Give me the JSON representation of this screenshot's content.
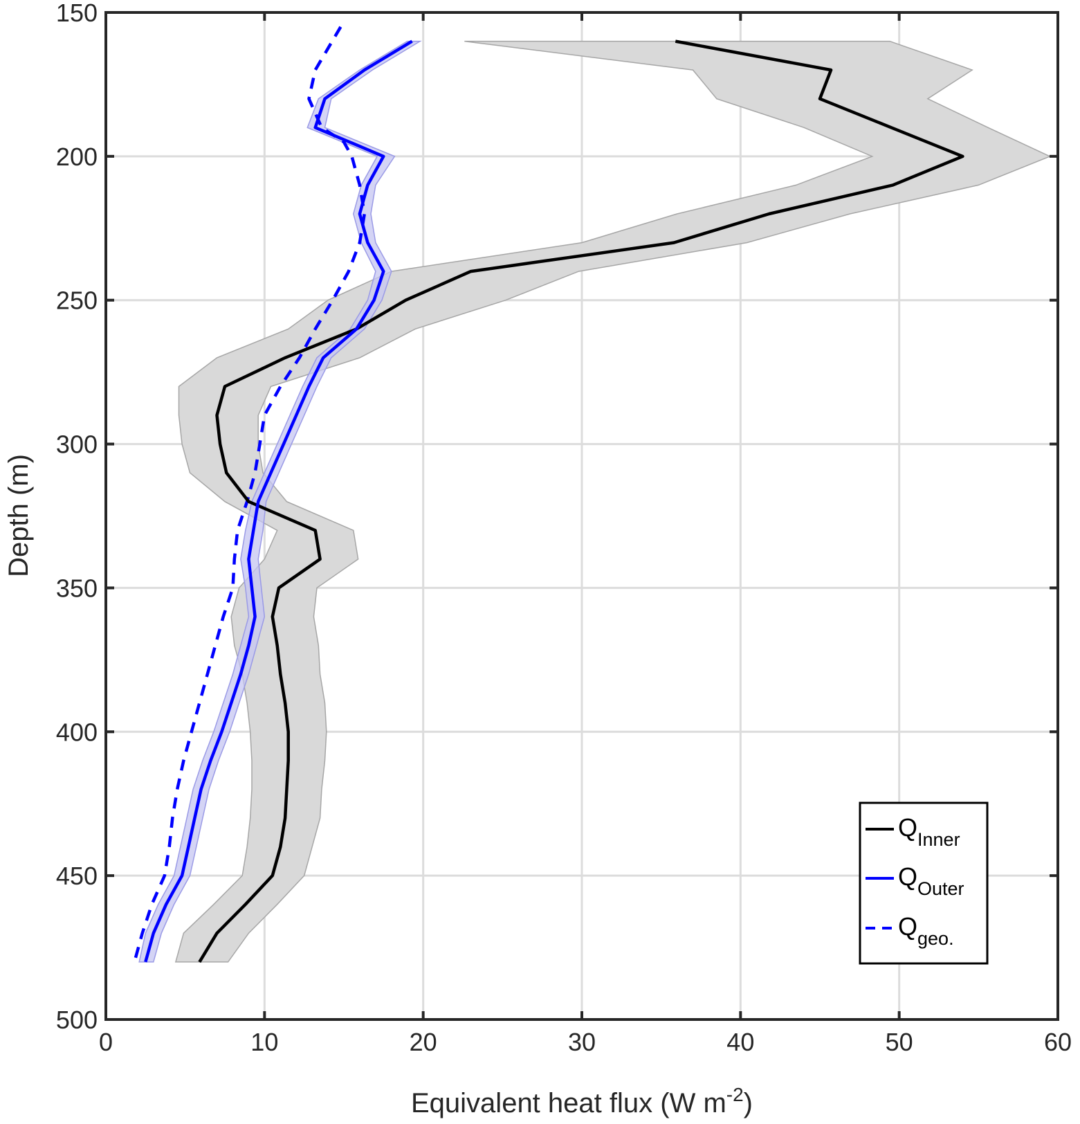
{
  "chart_data": {
    "type": "line",
    "xlabel": "Equivalent heat flux",
    "xlabel_units": "(W m",
    "xlabel_units_exp": "-2",
    "xlabel_units_close": ")",
    "ylabel": "Depth (m)",
    "xlim": [
      0,
      60
    ],
    "ylim": [
      150,
      500
    ],
    "y_reversed": true,
    "x_ticks": [
      "0",
      "10",
      "20",
      "30",
      "40",
      "50",
      "60"
    ],
    "y_ticks": [
      "150",
      "200",
      "250",
      "300",
      "350",
      "400",
      "450",
      "500"
    ],
    "grid": true,
    "legend_position": "bottom-right",
    "depth": [
      160,
      170,
      180,
      190,
      200,
      210,
      220,
      230,
      240,
      250,
      260,
      270,
      280,
      290,
      300,
      310,
      320,
      330,
      340,
      350,
      360,
      370,
      380,
      390,
      400,
      410,
      420,
      430,
      440,
      450,
      460,
      470,
      480
    ],
    "series": [
      {
        "name_main": "Q",
        "name_sub": "Inner",
        "color": "#000000",
        "style": "solid",
        "values": [
          35.9,
          45.7,
          45.0,
          49.5,
          54.0,
          49.6,
          41.8,
          35.8,
          23.0,
          18.9,
          15.8,
          11.3,
          7.5,
          7.0,
          7.2,
          7.6,
          9.0,
          13.2,
          13.5,
          10.9,
          10.5,
          10.8,
          11.0,
          11.3,
          11.5,
          11.5,
          11.4,
          11.3,
          11.0,
          10.5,
          8.8,
          7.0,
          5.9
        ],
        "band_low": [
          22.6,
          37.0,
          38.5,
          44.0,
          48.3,
          43.5,
          36.0,
          30.0,
          18.0,
          14.0,
          11.5,
          7.0,
          4.6,
          4.6,
          4.8,
          5.3,
          7.5,
          10.8,
          10.0,
          8.4,
          7.9,
          8.1,
          8.6,
          8.9,
          9.1,
          9.2,
          9.2,
          9.1,
          8.9,
          8.6,
          6.8,
          4.9,
          4.4
        ],
        "band_high": [
          49.4,
          54.6,
          51.8,
          55.6,
          59.5,
          55.0,
          46.9,
          40.4,
          29.8,
          25.2,
          19.5,
          16.0,
          10.4,
          9.6,
          9.6,
          9.9,
          11.4,
          15.6,
          15.9,
          13.3,
          13.1,
          13.4,
          13.5,
          13.8,
          13.9,
          13.8,
          13.6,
          13.5,
          13.0,
          12.5,
          10.8,
          9.0,
          7.7
        ],
        "band_color": "#d9d9d9",
        "band_edge": "#a6a6a6"
      },
      {
        "name_main": "Q",
        "name_sub": "Outer",
        "color": "#0000ff",
        "style": "solid",
        "values": [
          19.3,
          16.3,
          13.8,
          13.2,
          17.5,
          16.5,
          16.0,
          16.5,
          17.5,
          16.9,
          15.8,
          13.7,
          12.8,
          12.0,
          11.2,
          10.4,
          9.6,
          9.3,
          9.0,
          9.2,
          9.4,
          9.0,
          8.5,
          7.9,
          7.3,
          6.6,
          6.0,
          5.6,
          5.2,
          4.8,
          3.8,
          3.0,
          2.5
        ],
        "band_low": [
          19.0,
          16.0,
          13.4,
          12.7,
          17.1,
          16.1,
          15.6,
          16.1,
          17.0,
          16.5,
          15.4,
          13.3,
          12.4,
          11.6,
          10.8,
          10.0,
          9.2,
          8.8,
          8.5,
          8.8,
          9.0,
          8.5,
          8.0,
          7.4,
          6.8,
          6.1,
          5.5,
          5.1,
          4.7,
          4.3,
          3.3,
          2.5,
          2.1
        ],
        "band_high": [
          19.8,
          16.8,
          14.2,
          13.8,
          18.2,
          17.0,
          16.7,
          17.0,
          18.0,
          17.4,
          16.3,
          14.2,
          13.3,
          12.5,
          11.7,
          10.9,
          10.1,
          9.9,
          9.6,
          9.8,
          10.0,
          9.5,
          9.0,
          8.4,
          7.8,
          7.1,
          6.5,
          6.1,
          5.7,
          5.3,
          4.3,
          3.5,
          3.0
        ],
        "band_color": "#c5c5f2",
        "band_edge": "#9a9ae6"
      },
      {
        "name_main": "Q",
        "name_sub": "geo.",
        "color": "#0000ff",
        "style": "dashed",
        "depth": [
          155,
          170,
          180,
          190,
          195,
          200,
          210,
          220,
          230,
          240,
          250,
          260,
          270,
          280,
          290,
          300,
          310,
          320,
          330,
          340,
          350,
          360,
          370,
          380,
          390,
          400,
          410,
          420,
          430,
          440,
          450,
          460,
          470,
          480
        ],
        "values": [
          14.8,
          13.2,
          12.8,
          13.6,
          15.0,
          15.5,
          16.0,
          16.3,
          16.0,
          15.3,
          14.3,
          13.2,
          12.2,
          11.0,
          10.0,
          9.7,
          9.4,
          8.9,
          8.3,
          8.1,
          8.0,
          7.4,
          6.9,
          6.4,
          5.9,
          5.4,
          4.9,
          4.5,
          4.2,
          4.0,
          3.7,
          2.9,
          2.3,
          1.8
        ],
        "band_low": [],
        "band_high": []
      }
    ]
  }
}
